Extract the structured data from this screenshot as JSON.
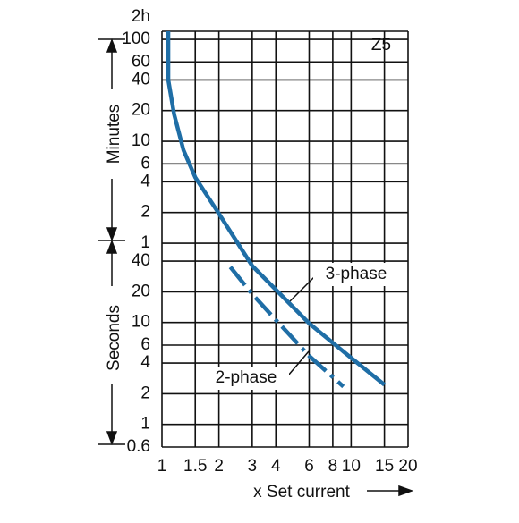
{
  "chart_data": {
    "type": "line",
    "xlabel": "x Set current",
    "y_group_labels": [
      "Minutes",
      "Seconds"
    ],
    "annotation": "Z5",
    "log_x": true,
    "log_y": true,
    "grid": true,
    "xlim": [
      1,
      20
    ],
    "xticks": [
      1,
      1.5,
      2,
      3,
      4,
      6,
      8,
      10,
      15,
      20
    ],
    "ylim": [
      0.6,
      7200
    ],
    "yticks": [
      {
        "value": 7200,
        "label": "2h"
      },
      {
        "value": 6000,
        "label": "100"
      },
      {
        "value": 3600,
        "label": "60"
      },
      {
        "value": 2400,
        "label": "40"
      },
      {
        "value": 1200,
        "label": "20"
      },
      {
        "value": 600,
        "label": "10"
      },
      {
        "value": 360,
        "label": "6"
      },
      {
        "value": 240,
        "label": "4"
      },
      {
        "value": 120,
        "label": "2"
      },
      {
        "value": 60,
        "label": "1"
      },
      40,
      20,
      10,
      6,
      4,
      2,
      1,
      0.6
    ],
    "series": [
      {
        "name": "3-phase",
        "color": "#1f6ea6",
        "dash": false,
        "x": [
          1.08,
          1.08,
          1.16,
          1.3,
          1.5,
          2,
          3,
          4,
          6,
          10,
          15
        ],
        "values": [
          7200,
          2400,
          1100,
          490,
          265,
          117,
          36,
          21,
          9.8,
          4.5,
          2.45
        ]
      },
      {
        "name": "2-phase",
        "color": "#1f6ea6",
        "dash": true,
        "x": [
          2.3,
          3,
          4,
          6,
          9.1
        ],
        "values": [
          35,
          19,
          10.6,
          4.7,
          2.35
        ]
      }
    ]
  }
}
